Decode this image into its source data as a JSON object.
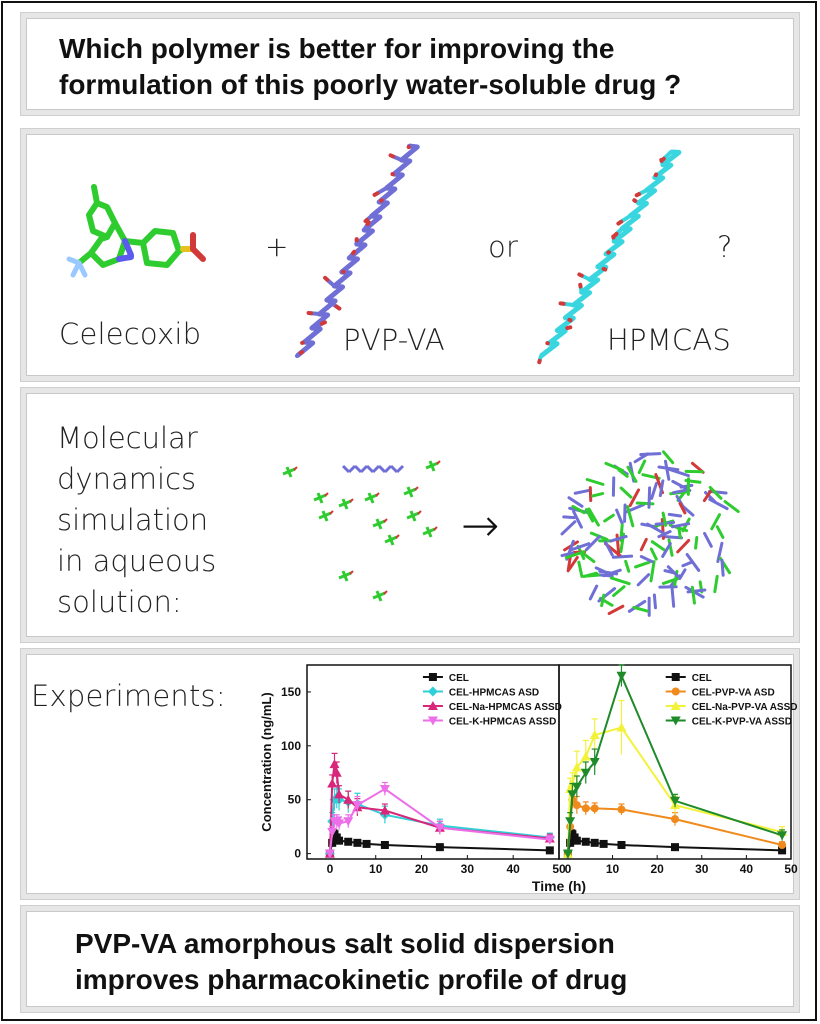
{
  "question": {
    "line1": "Which polymer is better for improving the",
    "line2": "formulation of this poorly water-soluble drug ?"
  },
  "molecules": {
    "drug_label": "Celecoxib",
    "plus": "+",
    "polymer1_label": "PVP-VA",
    "or": "or",
    "polymer2_label": "HPMCAS",
    "qmark": "?"
  },
  "md": {
    "lines": [
      "Molecular",
      "dynamics",
      "simulation",
      "in aqueous",
      "solution:"
    ],
    "arrow": "→"
  },
  "experiments_label": "Experiments:",
  "conclusion": {
    "line1": "PVP-VA amorphous salt solid dispersion",
    "line2": "improves pharmacokinetic profile of drug"
  },
  "colors": {
    "drug_green": "#2ecc2e",
    "pvpva_blue": "#6f6fd6",
    "hpmcas_cyan": "#39d6e0",
    "oxygen_red": "#d23a3a"
  },
  "chart_data": [
    {
      "type": "line",
      "xlabel": "Time (h)",
      "ylabel": "Concentration (ng/mL)",
      "xlim": [
        -5,
        50
      ],
      "ylim": [
        -5,
        175
      ],
      "xticks": [
        0,
        10,
        20,
        30,
        40,
        50
      ],
      "yticks": [
        0,
        50,
        100,
        150
      ],
      "legend_position": "top-right",
      "series": [
        {
          "name": "CEL",
          "color": "#111111",
          "marker": "square",
          "x": [
            0,
            0.5,
            1,
            1.5,
            2,
            4,
            6,
            8,
            12,
            24,
            48
          ],
          "y": [
            0,
            10,
            18,
            15,
            12,
            11,
            10,
            9,
            8,
            6,
            3
          ],
          "err": [
            0,
            2,
            4,
            3,
            2,
            2,
            2,
            1,
            1,
            1,
            1
          ]
        },
        {
          "name": "CEL-HPMCAS ASD",
          "color": "#2fd0d8",
          "marker": "diamond",
          "x": [
            0,
            0.5,
            1,
            1.5,
            2,
            4,
            6,
            12,
            24,
            48
          ],
          "y": [
            0,
            30,
            50,
            52,
            50,
            48,
            46,
            36,
            26,
            15
          ],
          "err": [
            0,
            8,
            10,
            10,
            10,
            10,
            10,
            8,
            6,
            4
          ]
        },
        {
          "name": "CEL-Na-HPMCAS ASSD",
          "color": "#d8267a",
          "marker": "triangle-up",
          "x": [
            0,
            0.5,
            1,
            1.5,
            2,
            4,
            6,
            12,
            24,
            48
          ],
          "y": [
            0,
            65,
            83,
            75,
            55,
            50,
            43,
            40,
            24,
            14
          ],
          "err": [
            0,
            8,
            10,
            10,
            8,
            8,
            8,
            6,
            6,
            4
          ]
        },
        {
          "name": "CEL-K-HPMCAS ASSD",
          "color": "#ec6ee8",
          "marker": "triangle-down",
          "x": [
            0,
            0.5,
            1,
            1.5,
            2,
            4,
            6,
            12,
            24,
            48
          ],
          "y": [
            0,
            20,
            30,
            30,
            28,
            30,
            45,
            60,
            24,
            13
          ],
          "err": [
            0,
            5,
            6,
            6,
            6,
            6,
            8,
            6,
            6,
            4
          ]
        }
      ]
    },
    {
      "type": "line",
      "xlabel": "Time (h)",
      "ylabel": "",
      "xlim": [
        -2,
        50
      ],
      "ylim": [
        -5,
        175
      ],
      "xticks": [
        0,
        10,
        20,
        30,
        40,
        50
      ],
      "legend_position": "top-right",
      "series": [
        {
          "name": "CEL",
          "color": "#111111",
          "marker": "square",
          "x": [
            0,
            0.5,
            1,
            1.5,
            2,
            4,
            6,
            8,
            12,
            24,
            48
          ],
          "y": [
            0,
            10,
            18,
            15,
            12,
            11,
            10,
            9,
            8,
            6,
            3
          ],
          "err": [
            0,
            2,
            4,
            3,
            2,
            2,
            2,
            1,
            1,
            1,
            1
          ]
        },
        {
          "name": "CEL-PVP-VA ASD",
          "color": "#f08a1c",
          "marker": "circle",
          "x": [
            0,
            0.5,
            1,
            2,
            4,
            6,
            12,
            24,
            48
          ],
          "y": [
            0,
            25,
            50,
            45,
            42,
            42,
            41,
            32,
            8
          ],
          "err": [
            0,
            6,
            8,
            8,
            6,
            5,
            5,
            6,
            3
          ]
        },
        {
          "name": "CEL-Na-PVP-VA ASSD",
          "color": "#f2f23a",
          "marker": "triangle-up",
          "x": [
            0,
            0.5,
            1,
            2,
            4,
            6,
            12,
            24,
            48
          ],
          "y": [
            0,
            60,
            65,
            80,
            90,
            110,
            117,
            45,
            20
          ],
          "err": [
            0,
            10,
            10,
            15,
            15,
            15,
            25,
            8,
            5
          ]
        },
        {
          "name": "CEL-K-PVP-VA ASSD",
          "color": "#1f8a2a",
          "marker": "triangle-down",
          "x": [
            0,
            0.5,
            1,
            2,
            4,
            6,
            12,
            24,
            48
          ],
          "y": [
            0,
            30,
            55,
            62,
            75,
            85,
            165,
            49,
            17
          ],
          "err": [
            0,
            8,
            10,
            10,
            10,
            12,
            10,
            6,
            5
          ]
        }
      ]
    }
  ]
}
